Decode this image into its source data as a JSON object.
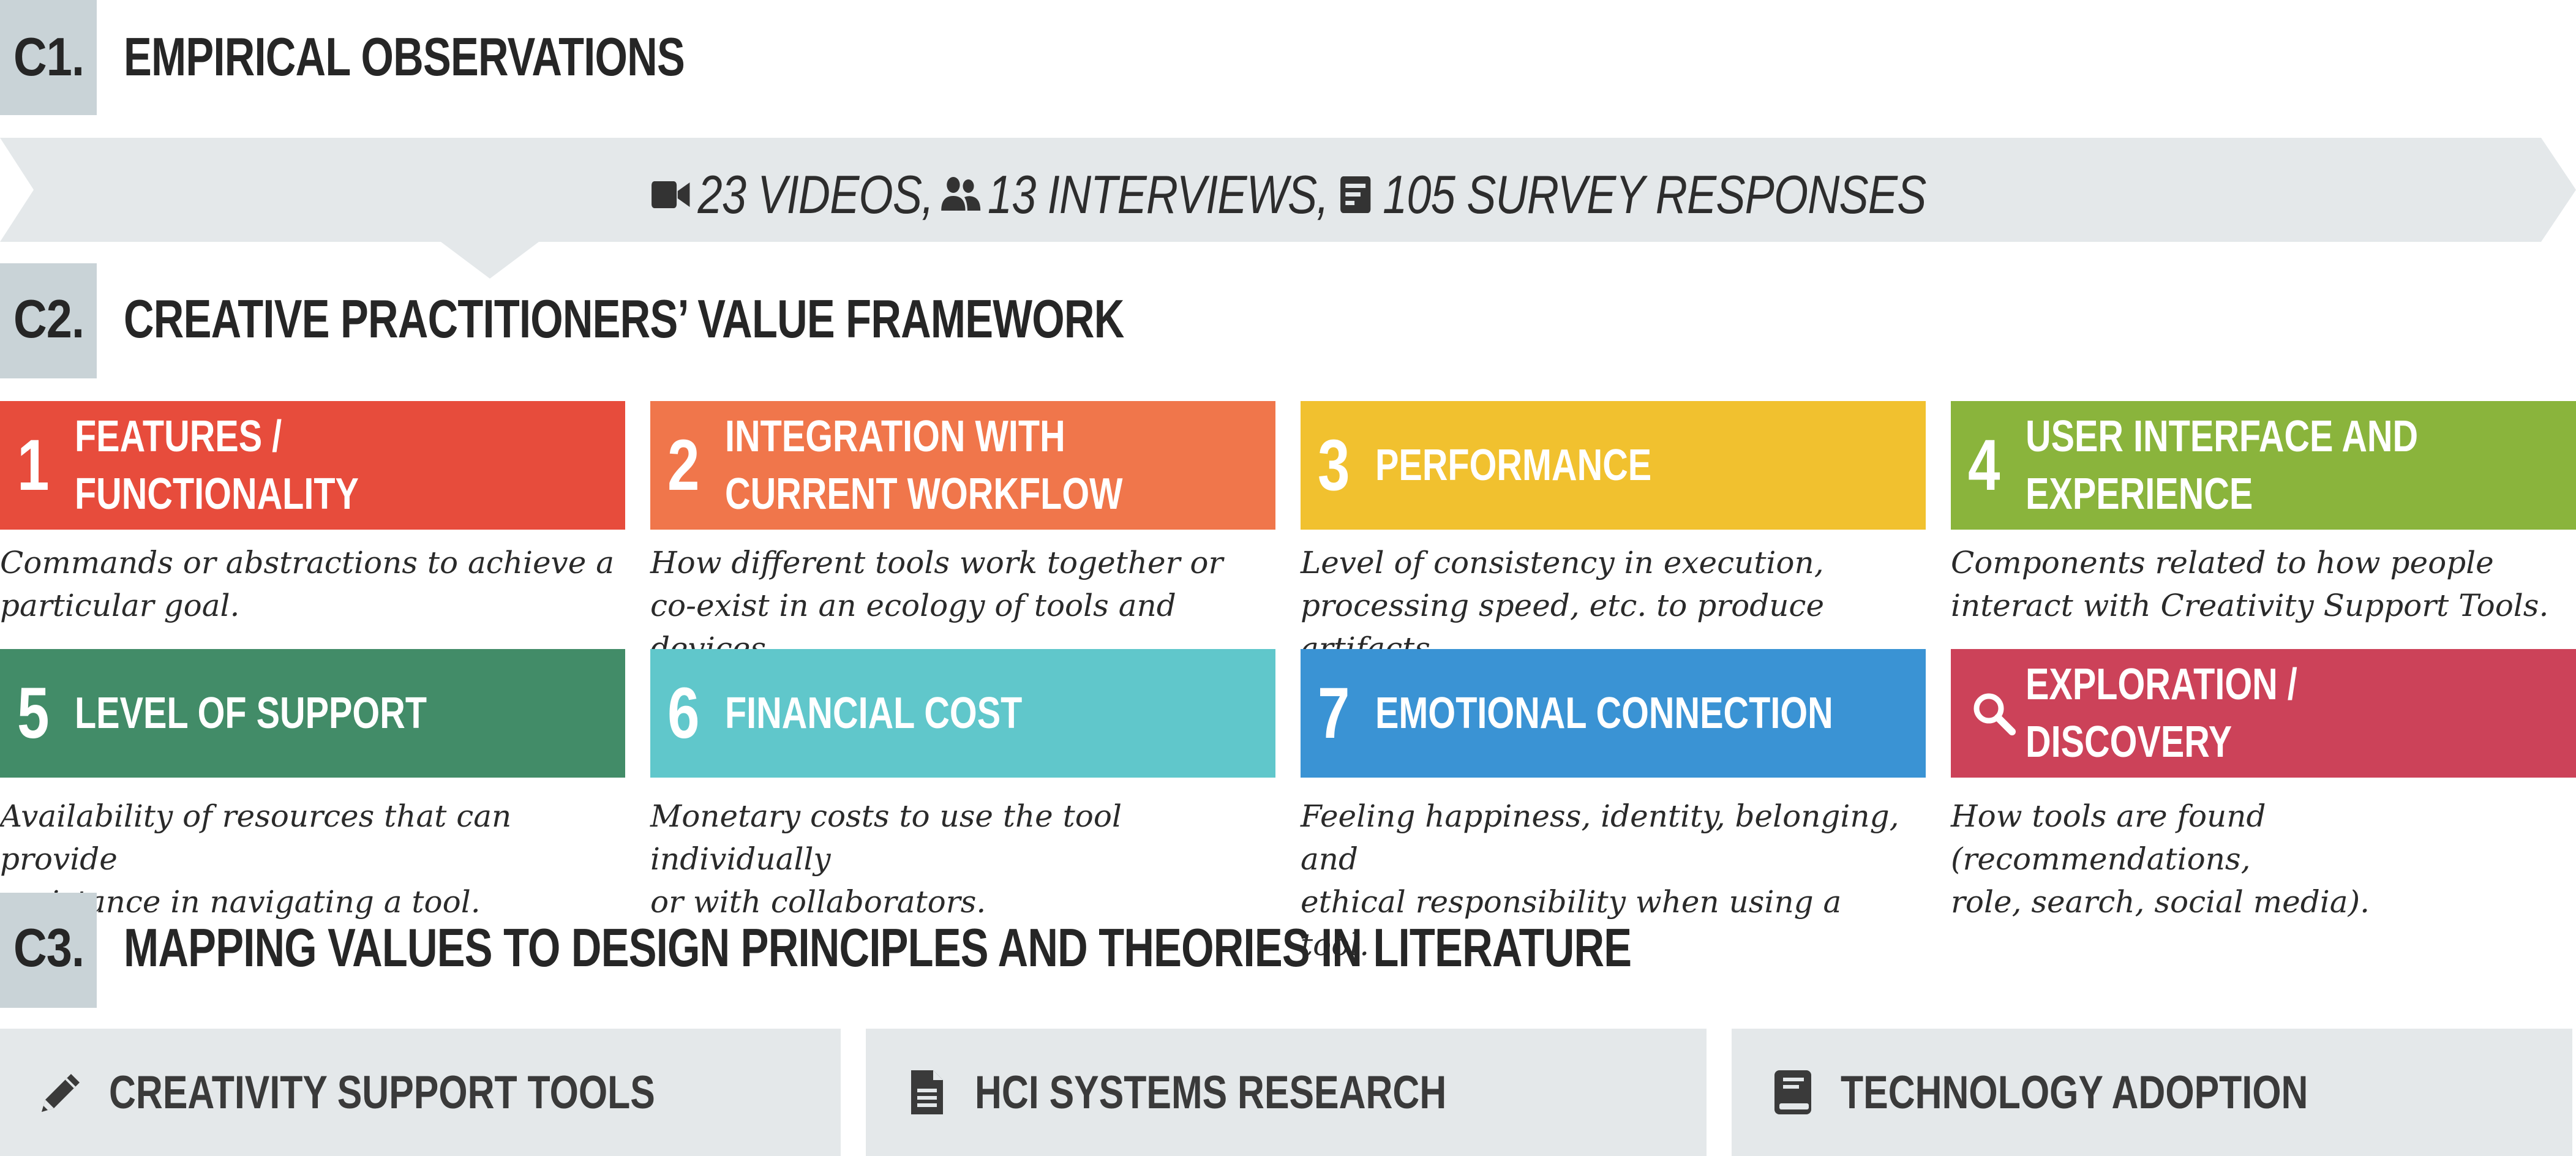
{
  "sections": {
    "c1": {
      "code": "C1.",
      "title": "EMPIRICAL OBSERVATIONS"
    },
    "c2": {
      "code": "C2.",
      "title": "CREATIVE PRACTITIONERS’ VALUE FRAMEWORK"
    },
    "c3": {
      "code": "C3.",
      "title": "MAPPING VALUES TO DESIGN PRINCIPLES AND THEORIES IN LITERATURE"
    }
  },
  "observations": [
    {
      "icon": "video-camera-icon",
      "text": "23 VIDEOS,"
    },
    {
      "icon": "people-icon",
      "text": "13 INTERVIEWS,"
    },
    {
      "icon": "survey-form-icon",
      "text": "105 SURVEY RESPONSES"
    }
  ],
  "values": [
    {
      "num": "1",
      "title": "FEATURES /\nFUNCTIONALITY",
      "color": "#e74c3c",
      "desc": "Commands or abstractions to achieve a\nparticular goal."
    },
    {
      "num": "2",
      "title": "INTEGRATION WITH\nCURRENT WORKFLOW",
      "color": "#f0764b",
      "desc": "How different tools work together or\nco-exist in an ecology of tools and devices."
    },
    {
      "num": "3",
      "title": "PERFORMANCE",
      "color": "#f1c12f",
      "desc": "Level of consistency in execution,\nprocessing speed, etc. to produce artifacts."
    },
    {
      "num": "4",
      "title": "USER INTERFACE AND\nEXPERIENCE",
      "color": "#8ab43c",
      "desc": "Components related to how people\ninteract with Creativity Support Tools."
    },
    {
      "num": "5",
      "title": "LEVEL OF SUPPORT",
      "color": "#428c68",
      "desc": "Availability of resources that can provide\nassistance in navigating a tool."
    },
    {
      "num": "6",
      "title": "FINANCIAL COST",
      "color": "#60c7cb",
      "desc": "Monetary costs to use the tool individually\nor with collaborators."
    },
    {
      "num": "7",
      "title": "EMOTIONAL CONNECTION",
      "color": "#3a93d4",
      "desc": "Feeling happiness, identity, belonging, and\nethical responsibility when using a tool."
    },
    {
      "num": "",
      "icon": "magnifier-icon",
      "title": "EXPLORATION /\nDISCOVERY",
      "color": "#cc4259",
      "desc": "How tools are found (recommendations,\nrole, search, social media)."
    }
  ],
  "literature": [
    {
      "icon": "pencil-icon",
      "label": "CREATIVITY SUPPORT TOOLS"
    },
    {
      "icon": "document-icon",
      "label": "HCI SYSTEMS RESEARCH"
    },
    {
      "icon": "book-icon",
      "label": "TECHNOLOGY ADOPTION"
    }
  ],
  "colors": {
    "section_box": "#c9d3d7",
    "banner": "#e4e8ea",
    "literature_box": "#e4e8ea"
  }
}
